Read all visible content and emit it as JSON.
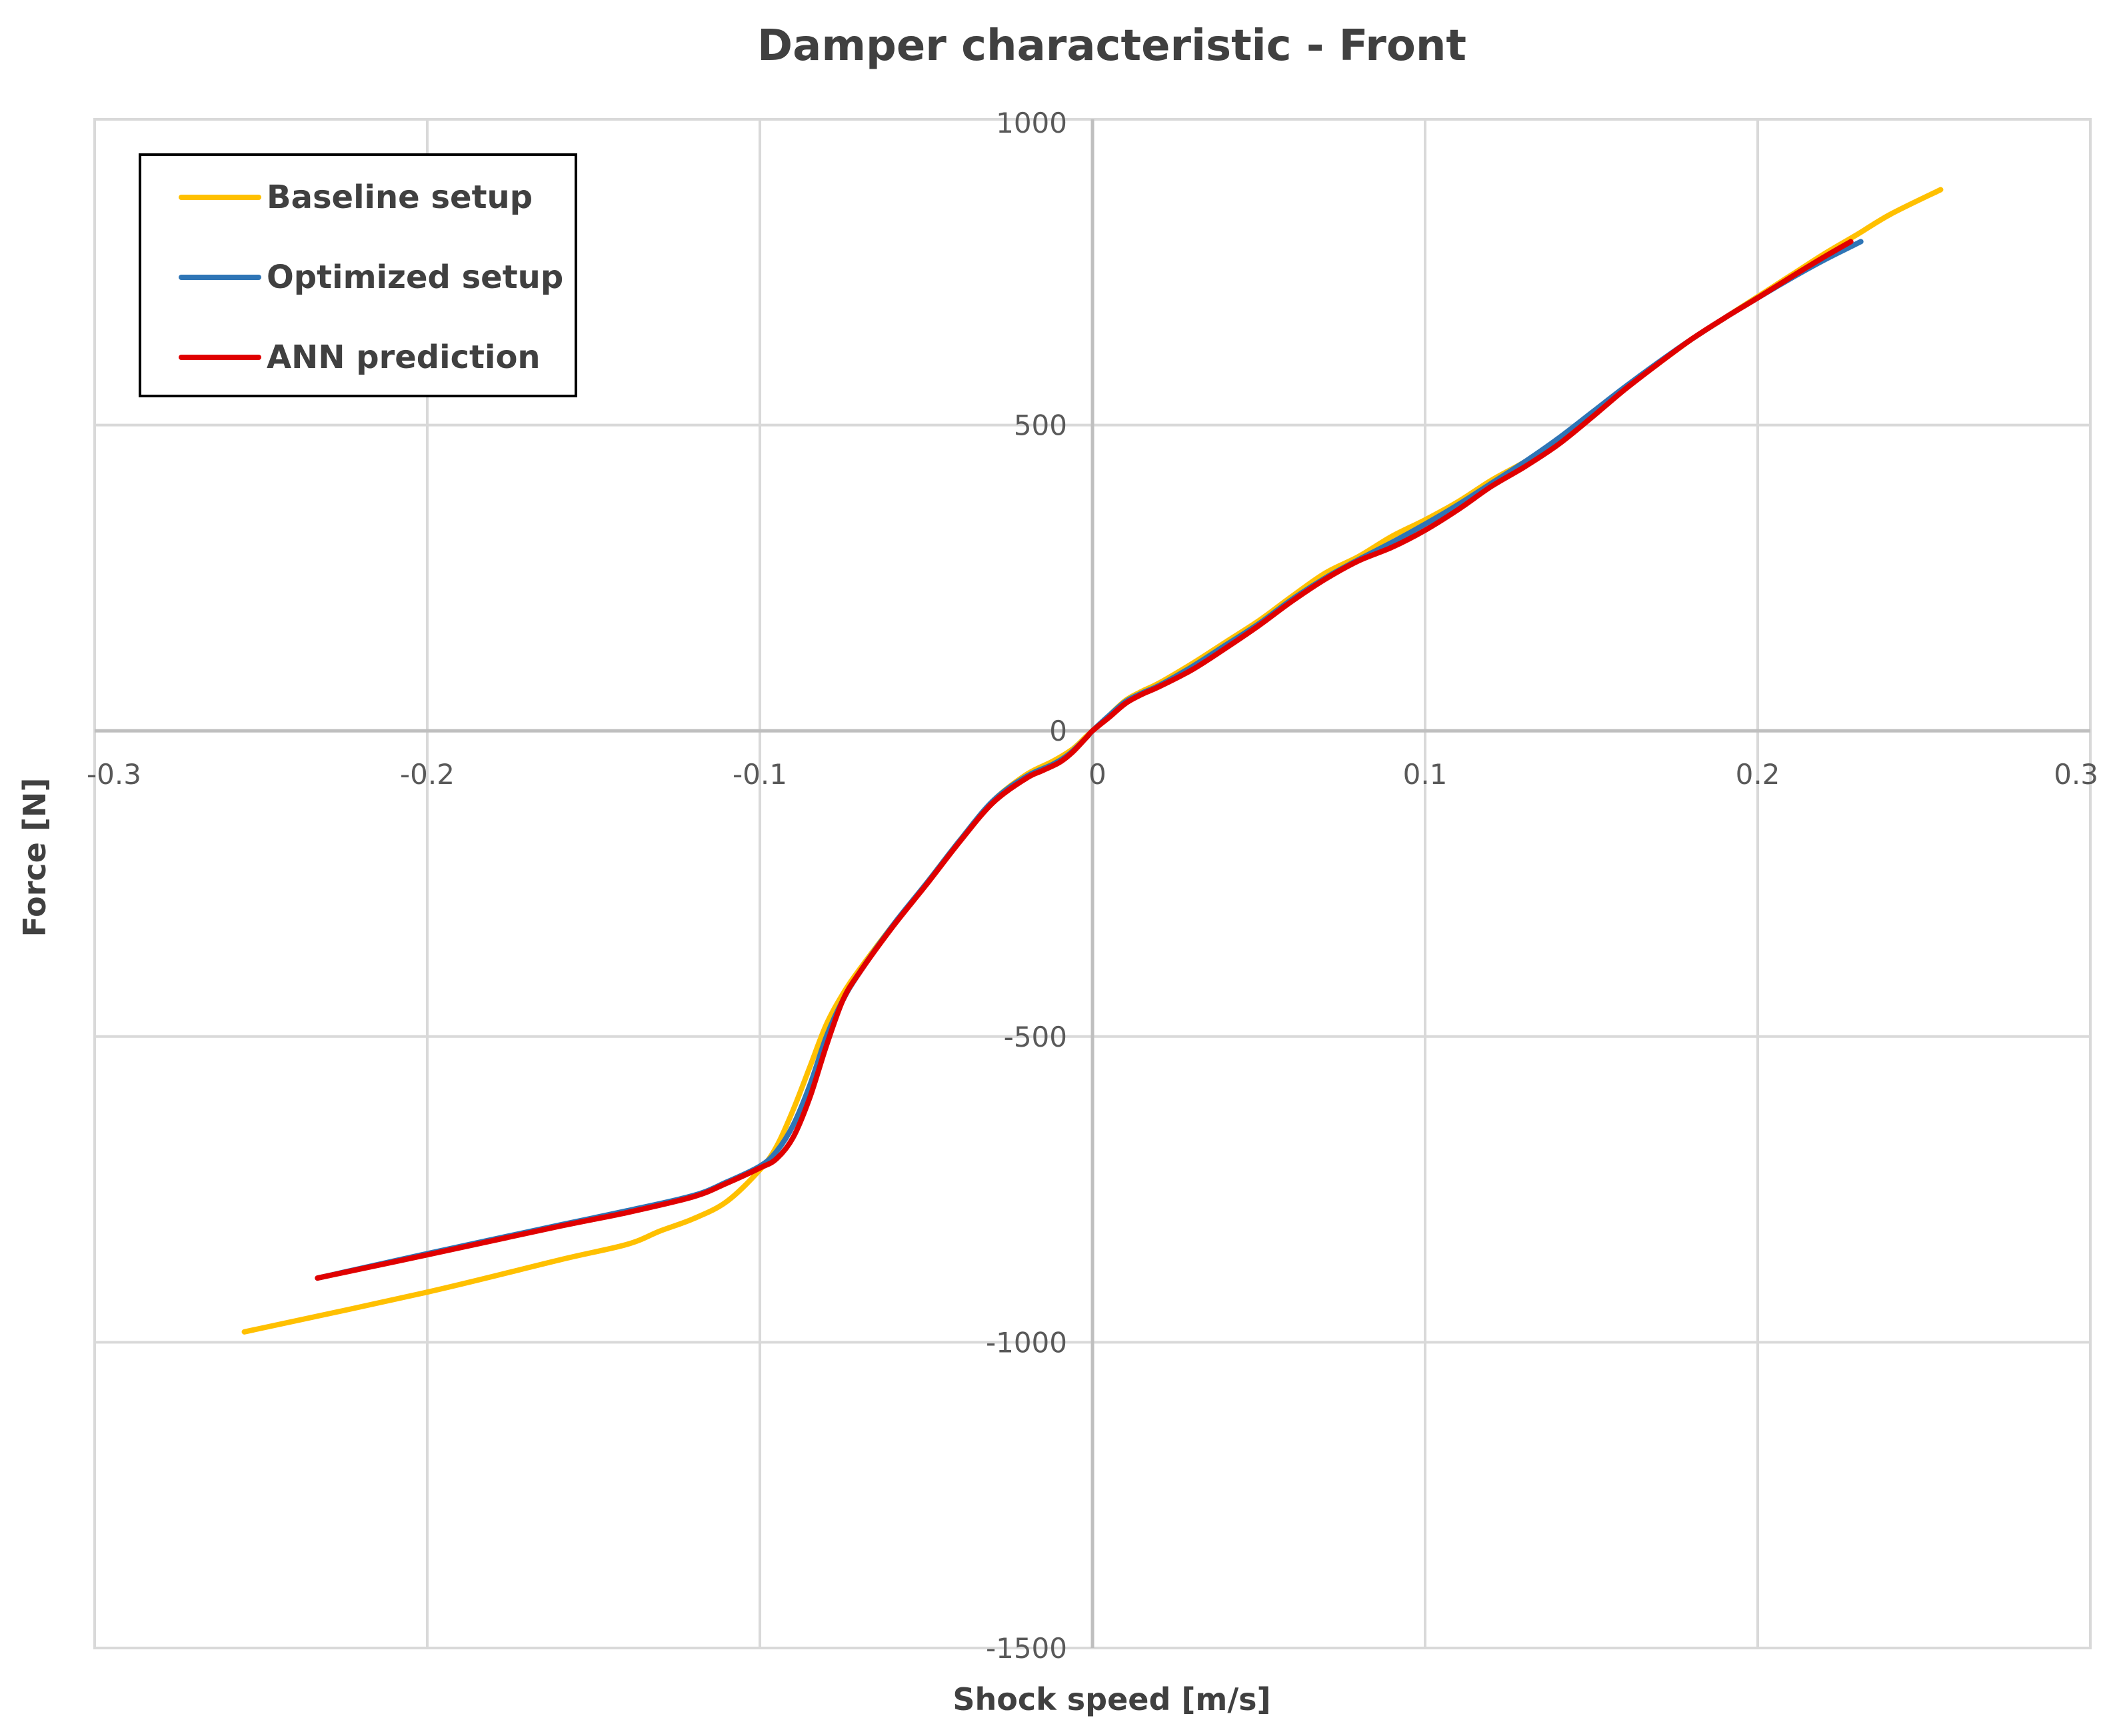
{
  "chart_data": {
    "type": "line",
    "title": "Damper characteristic - Front",
    "xlabel": "Shock speed [m/s]",
    "ylabel": "Force [N]",
    "xlim": [
      -0.3,
      0.3
    ],
    "ylim": [
      -1500,
      1000
    ],
    "x_ticks": [
      -0.3,
      -0.2,
      -0.1,
      0,
      0.1,
      0.2,
      0.3
    ],
    "y_ticks": [
      -1500,
      -1000,
      -500,
      0,
      500,
      1000
    ],
    "x_tick_labels": [
      "-0.3",
      "-0.2",
      "-0.1",
      "0",
      "0.1",
      "0.2",
      "0.3"
    ],
    "y_tick_labels": [
      "-1500",
      "-1000",
      "-500",
      "0",
      "500",
      "1000"
    ],
    "grid": true,
    "legend_position": "top-left",
    "series": [
      {
        "name": "Baseline setup",
        "color": "#FFC000",
        "points": [
          [
            -0.255,
            -983
          ],
          [
            -0.2,
            -918
          ],
          [
            -0.16,
            -865
          ],
          [
            -0.14,
            -840
          ],
          [
            -0.13,
            -818
          ],
          [
            -0.12,
            -798
          ],
          [
            -0.11,
            -770
          ],
          [
            -0.1,
            -718
          ],
          [
            -0.095,
            -680
          ],
          [
            -0.09,
            -620
          ],
          [
            -0.085,
            -550
          ],
          [
            -0.08,
            -480
          ],
          [
            -0.075,
            -430
          ],
          [
            -0.07,
            -390
          ],
          [
            -0.06,
            -318
          ],
          [
            -0.05,
            -250
          ],
          [
            -0.04,
            -180
          ],
          [
            -0.03,
            -115
          ],
          [
            -0.02,
            -72
          ],
          [
            -0.012,
            -50
          ],
          [
            -0.006,
            -30
          ],
          [
            -0.002,
            -10
          ],
          [
            0,
            0
          ],
          [
            0.005,
            25
          ],
          [
            0.01,
            50
          ],
          [
            0.015,
            65
          ],
          [
            0.02,
            78
          ],
          [
            0.03,
            110
          ],
          [
            0.04,
            145
          ],
          [
            0.05,
            180
          ],
          [
            0.06,
            220
          ],
          [
            0.07,
            258
          ],
          [
            0.08,
            285
          ],
          [
            0.09,
            318
          ],
          [
            0.1,
            345
          ],
          [
            0.11,
            375
          ],
          [
            0.12,
            410
          ],
          [
            0.13,
            440
          ],
          [
            0.14,
            475
          ],
          [
            0.15,
            515
          ],
          [
            0.16,
            560
          ],
          [
            0.17,
            600
          ],
          [
            0.18,
            640
          ],
          [
            0.19,
            675
          ],
          [
            0.2,
            710
          ],
          [
            0.21,
            745
          ],
          [
            0.22,
            780
          ],
          [
            0.23,
            812
          ],
          [
            0.24,
            845
          ],
          [
            0.255,
            885
          ]
        ]
      },
      {
        "name": "Optimized setup",
        "color": "#2E75B6",
        "points": [
          [
            -0.233,
            -895
          ],
          [
            -0.2,
            -855
          ],
          [
            -0.16,
            -808
          ],
          [
            -0.14,
            -785
          ],
          [
            -0.12,
            -760
          ],
          [
            -0.11,
            -738
          ],
          [
            -0.1,
            -712
          ],
          [
            -0.095,
            -688
          ],
          [
            -0.09,
            -645
          ],
          [
            -0.085,
            -580
          ],
          [
            -0.08,
            -500
          ],
          [
            -0.075,
            -440
          ],
          [
            -0.07,
            -395
          ],
          [
            -0.06,
            -318
          ],
          [
            -0.05,
            -250
          ],
          [
            -0.04,
            -180
          ],
          [
            -0.03,
            -115
          ],
          [
            -0.02,
            -75
          ],
          [
            -0.012,
            -55
          ],
          [
            -0.007,
            -38
          ],
          [
            -0.002,
            -12
          ],
          [
            0,
            0
          ],
          [
            0.005,
            25
          ],
          [
            0.01,
            48
          ],
          [
            0.015,
            62
          ],
          [
            0.02,
            74
          ],
          [
            0.03,
            105
          ],
          [
            0.04,
            140
          ],
          [
            0.05,
            175
          ],
          [
            0.06,
            215
          ],
          [
            0.07,
            250
          ],
          [
            0.08,
            280
          ],
          [
            0.09,
            308
          ],
          [
            0.1,
            338
          ],
          [
            0.11,
            370
          ],
          [
            0.12,
            405
          ],
          [
            0.13,
            440
          ],
          [
            0.14,
            478
          ],
          [
            0.15,
            520
          ],
          [
            0.16,
            562
          ],
          [
            0.17,
            602
          ],
          [
            0.18,
            640
          ],
          [
            0.19,
            675
          ],
          [
            0.2,
            708
          ],
          [
            0.21,
            740
          ],
          [
            0.22,
            770
          ],
          [
            0.231,
            800
          ]
        ]
      },
      {
        "name": "ANN prediction",
        "color": "#E00000",
        "points": [
          [
            -0.233,
            -895
          ],
          [
            -0.2,
            -857
          ],
          [
            -0.16,
            -810
          ],
          [
            -0.14,
            -788
          ],
          [
            -0.12,
            -762
          ],
          [
            -0.11,
            -740
          ],
          [
            -0.1,
            -715
          ],
          [
            -0.095,
            -700
          ],
          [
            -0.09,
            -665
          ],
          [
            -0.085,
            -600
          ],
          [
            -0.08,
            -515
          ],
          [
            -0.075,
            -440
          ],
          [
            -0.07,
            -395
          ],
          [
            -0.06,
            -320
          ],
          [
            -0.05,
            -252
          ],
          [
            -0.04,
            -182
          ],
          [
            -0.03,
            -118
          ],
          [
            -0.02,
            -78
          ],
          [
            -0.015,
            -65
          ],
          [
            -0.01,
            -52
          ],
          [
            -0.006,
            -35
          ],
          [
            -0.002,
            -12
          ],
          [
            0,
            0
          ],
          [
            0.005,
            22
          ],
          [
            0.01,
            45
          ],
          [
            0.015,
            60
          ],
          [
            0.02,
            72
          ],
          [
            0.03,
            100
          ],
          [
            0.04,
            135
          ],
          [
            0.05,
            172
          ],
          [
            0.06,
            212
          ],
          [
            0.07,
            248
          ],
          [
            0.08,
            278
          ],
          [
            0.09,
            300
          ],
          [
            0.1,
            328
          ],
          [
            0.11,
            362
          ],
          [
            0.12,
            400
          ],
          [
            0.13,
            432
          ],
          [
            0.14,
            468
          ],
          [
            0.15,
            512
          ],
          [
            0.16,
            558
          ],
          [
            0.17,
            600
          ],
          [
            0.18,
            640
          ],
          [
            0.19,
            675
          ],
          [
            0.2,
            708
          ],
          [
            0.21,
            742
          ],
          [
            0.22,
            775
          ],
          [
            0.228,
            800
          ]
        ]
      }
    ]
  }
}
